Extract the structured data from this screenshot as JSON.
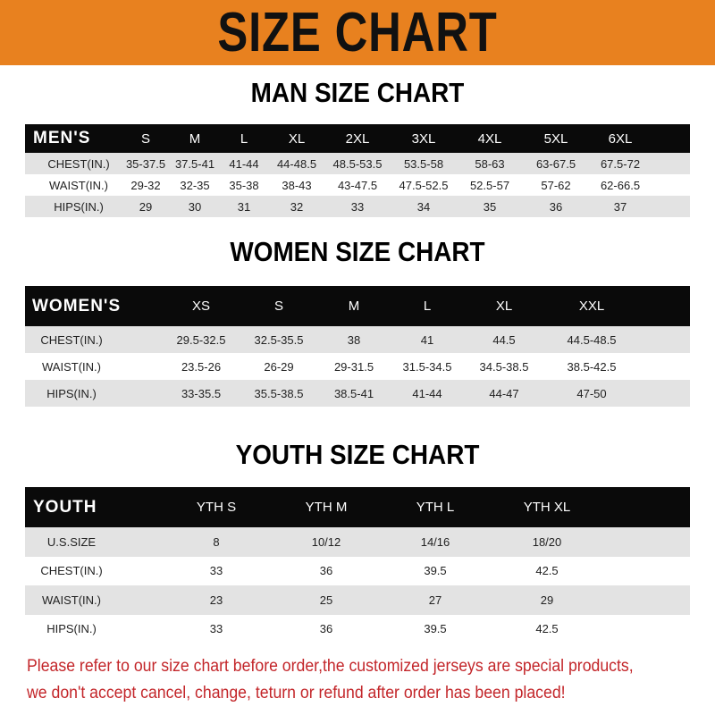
{
  "banner_title": "SIZE CHART",
  "colors": {
    "banner": "#e8811f",
    "header_row": "#0a0a0a",
    "stripe": "#e3e3e3",
    "note": "#c3262a"
  },
  "men": {
    "title": "MAN SIZE CHART",
    "header": [
      "MEN'S",
      "S",
      "M",
      "L",
      "XL",
      "2XL",
      "3XL",
      "4XL",
      "5XL",
      "6XL"
    ],
    "rows": [
      [
        "CHEST(IN.)",
        "35-37.5",
        "37.5-41",
        "41-44",
        "44-48.5",
        "48.5-53.5",
        "53.5-58",
        "58-63",
        "63-67.5",
        "67.5-72"
      ],
      [
        "WAIST(IN.)",
        "29-32",
        "32-35",
        "35-38",
        "38-43",
        "43-47.5",
        "47.5-52.5",
        "52.5-57",
        "57-62",
        "62-66.5"
      ],
      [
        "HIPS(IN.)",
        "29",
        "30",
        "31",
        "32",
        "33",
        "34",
        "35",
        "36",
        "37"
      ]
    ]
  },
  "women": {
    "title": "WOMEN SIZE CHART",
    "header": [
      "WOMEN'S",
      "XS",
      "S",
      "M",
      "L",
      "XL",
      "XXL"
    ],
    "rows": [
      [
        "CHEST(IN.)",
        "29.5-32.5",
        "32.5-35.5",
        "38",
        "41",
        "44.5",
        "44.5-48.5"
      ],
      [
        "WAIST(IN.)",
        "23.5-26",
        "26-29",
        "29-31.5",
        "31.5-34.5",
        "34.5-38.5",
        "38.5-42.5"
      ],
      [
        "HIPS(IN.)",
        "33-35.5",
        "35.5-38.5",
        "38.5-41",
        "41-44",
        "44-47",
        "47-50"
      ]
    ]
  },
  "youth": {
    "title": "YOUTH SIZE CHART",
    "header": [
      "YOUTH",
      "YTH S",
      "YTH M",
      "YTH L",
      "YTH XL"
    ],
    "rows": [
      [
        "U.S.SIZE",
        "8",
        "10/12",
        "14/16",
        "18/20"
      ],
      [
        "CHEST(IN.)",
        "33",
        "36",
        "39.5",
        "42.5"
      ],
      [
        "WAIST(IN.)",
        "23",
        "25",
        "27",
        "29"
      ],
      [
        "HIPS(IN.)",
        "33",
        "36",
        "39.5",
        "42.5"
      ]
    ]
  },
  "note": {
    "line1": "Please refer to our size chart before order,the customized jerseys are special products,",
    "line2": "we don't accept cancel, change, teturn or refund after order has been placed!"
  }
}
